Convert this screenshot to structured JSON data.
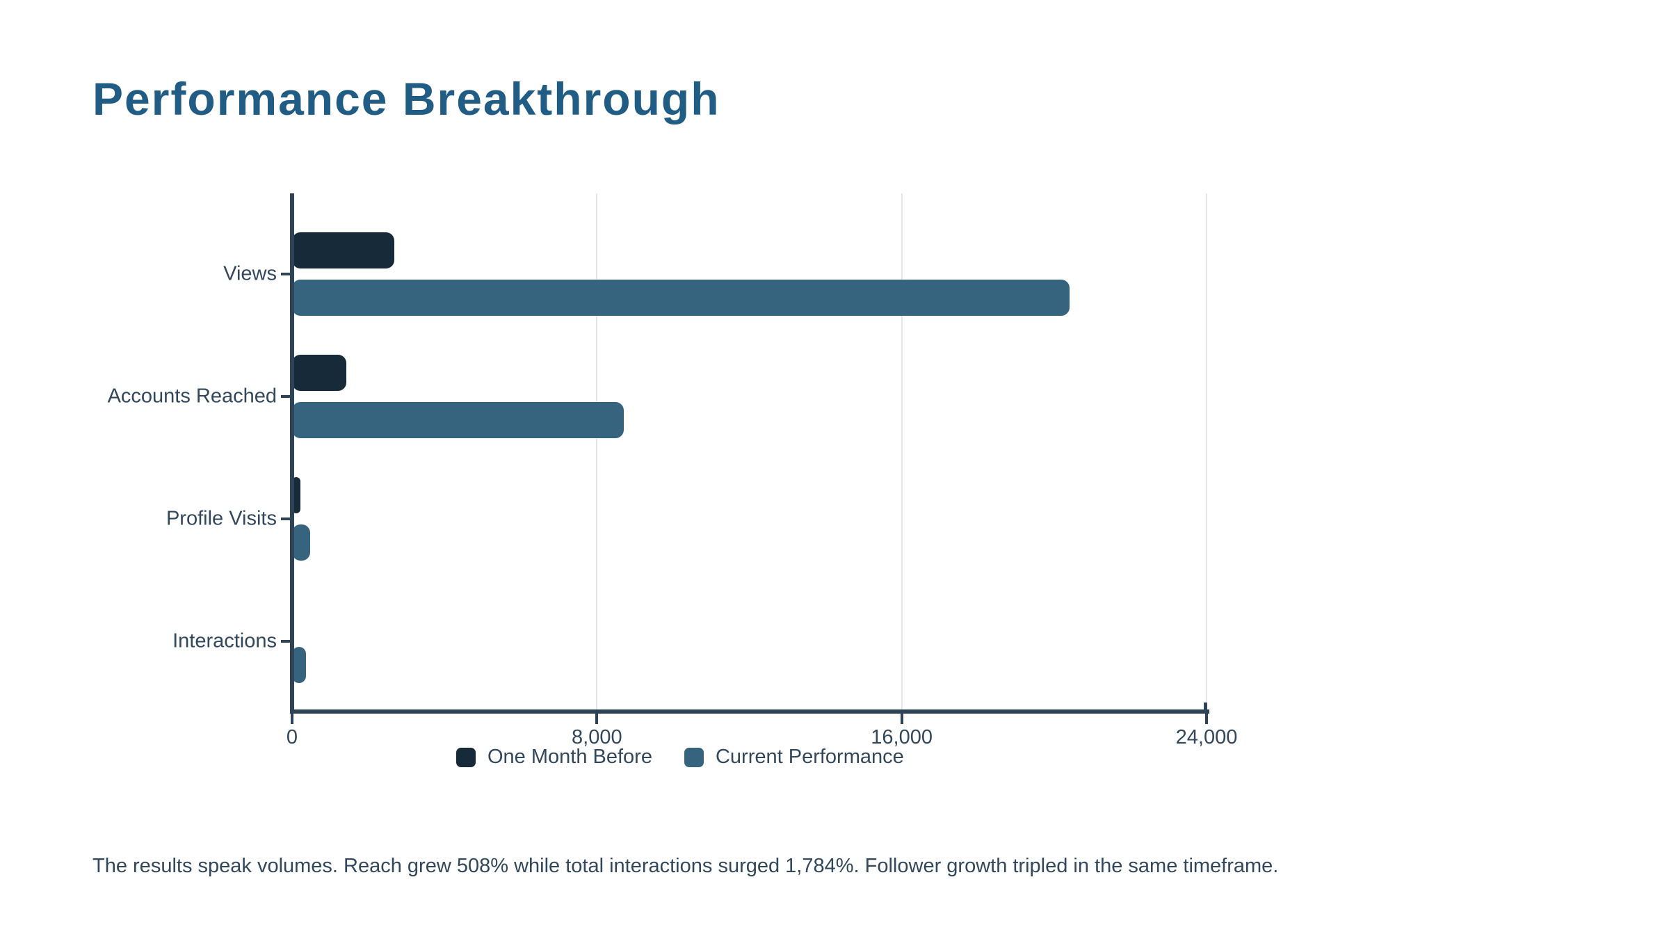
{
  "title": "Performance Breakthrough",
  "caption": "The results speak volumes. Reach grew 508% while total interactions surged 1,784%. Follower growth tripled in the same timeframe.",
  "colors": {
    "title": "#215C84",
    "text": "#33475B",
    "axis": "#2E4356",
    "grid": "#E4E6E8",
    "series_before": "#172A39",
    "series_current": "#36647F",
    "background": "#FFFFFF"
  },
  "legend": {
    "items": [
      {
        "label": "One Month Before",
        "color": "#172A39"
      },
      {
        "label": "Current Performance",
        "color": "#36647F"
      }
    ]
  },
  "chart_data": {
    "type": "bar",
    "orientation": "horizontal",
    "title": "Performance Breakthrough",
    "categories": [
      "Views",
      "Accounts Reached",
      "Profile Visits",
      "Interactions"
    ],
    "series": [
      {
        "name": "One Month Before",
        "color": "#172A39",
        "values": [
          2680,
          1430,
          225,
          19
        ]
      },
      {
        "name": "Current Performance",
        "color": "#36647F",
        "values": [
          20400,
          8700,
          470,
          358
        ]
      }
    ],
    "xlabel": "",
    "ylabel": "",
    "xlim": [
      0,
      24000
    ],
    "xticks": [
      0,
      8000,
      16000,
      24000
    ],
    "xtick_labels": [
      "0",
      "8,000",
      "16,000",
      "24,000"
    ],
    "grid": "vertical light gray gridlines at ticks",
    "legend_position": "bottom"
  }
}
